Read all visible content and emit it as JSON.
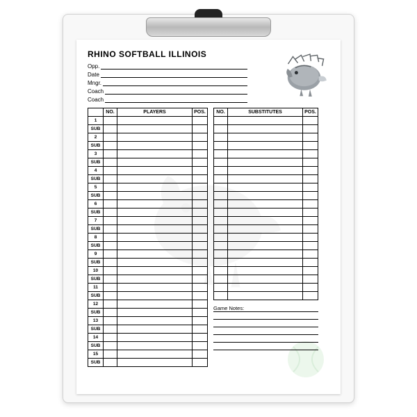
{
  "title": "RHINO SOFTBALL ILLINOIS",
  "info": {
    "opp": "Opp.",
    "date": "Date",
    "mngr": "Mngr.",
    "coach1": "Coach",
    "coach2": "Coach"
  },
  "columns": {
    "no": "NO.",
    "players": "PLAYERS",
    "pos": "POS.",
    "substitutes": "SUBSTITUTES"
  },
  "lineup_count": 15,
  "sub_label": "SUB",
  "substitutes_rows": 22,
  "notes_label": "Game Notes:",
  "notes_lines": 6,
  "colors": {
    "text": "#000000",
    "paper": "#ffffff",
    "clipboard": "#f8f8f8",
    "accent_green": "#6fbf73",
    "rhino_gray": "#8a8f94",
    "rhino_dark": "#5f6468"
  }
}
